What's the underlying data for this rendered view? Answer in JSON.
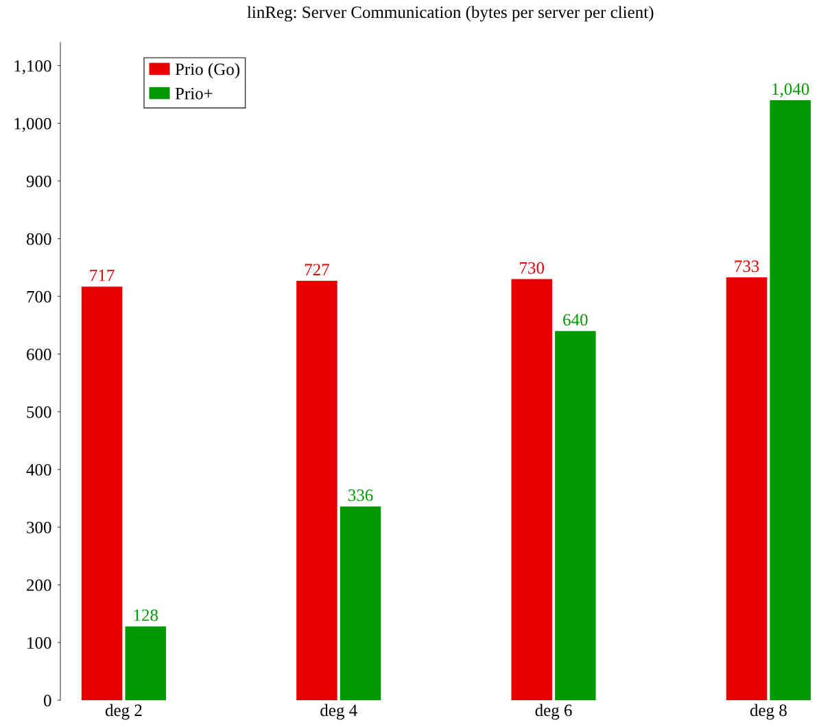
{
  "chart_data": {
    "type": "bar",
    "title": "linReg: Server Communication (bytes per server per client)",
    "categories": [
      "deg 2",
      "deg 4",
      "deg 6",
      "deg 8"
    ],
    "series": [
      {
        "name": "Prio (Go)",
        "color": "#e60000",
        "values": [
          717,
          727,
          730,
          733
        ],
        "value_labels": [
          "717",
          "727",
          "730",
          "733"
        ]
      },
      {
        "name": "Prio+",
        "color": "#009900",
        "values": [
          128,
          336,
          640,
          1040
        ],
        "value_labels": [
          "128",
          "336",
          "640",
          "1,040"
        ]
      }
    ],
    "ylim": [
      0,
      1140
    ],
    "yticks": [
      0,
      100,
      200,
      300,
      400,
      500,
      600,
      700,
      800,
      900,
      {
        "value": 1000,
        "label": "1,000"
      },
      {
        "value": 1100,
        "label": "1,100"
      }
    ],
    "grid": false,
    "legend": "top left"
  }
}
